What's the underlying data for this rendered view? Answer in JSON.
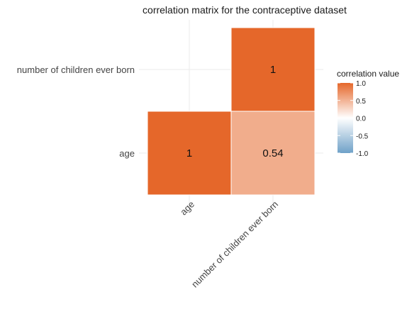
{
  "chart_data": {
    "type": "heatmap",
    "title": "correlation matrix for the contraceptive dataset",
    "variables": [
      "age",
      "number of children ever born"
    ],
    "cells": [
      {
        "x": "age",
        "y": "age",
        "value": 1,
        "label": "1"
      },
      {
        "x": "number of children ever born",
        "y": "age",
        "value": 0.54,
        "label": "0.54"
      },
      {
        "x": "number of children ever born",
        "y": "number of children ever born",
        "value": 1,
        "label": "1"
      }
    ],
    "legend": {
      "title": "correlation value",
      "range": [
        -1,
        1
      ],
      "ticks": [
        "1.0",
        "0.5",
        "0.0",
        "-0.5",
        "-1.0"
      ],
      "tick_values": [
        1,
        0.5,
        0,
        -0.5,
        -1
      ],
      "colors": {
        "low": "#6fa1c8",
        "mid": "#ffffff",
        "high": "#e5672a"
      }
    },
    "grid": true,
    "legend_position": "right"
  }
}
